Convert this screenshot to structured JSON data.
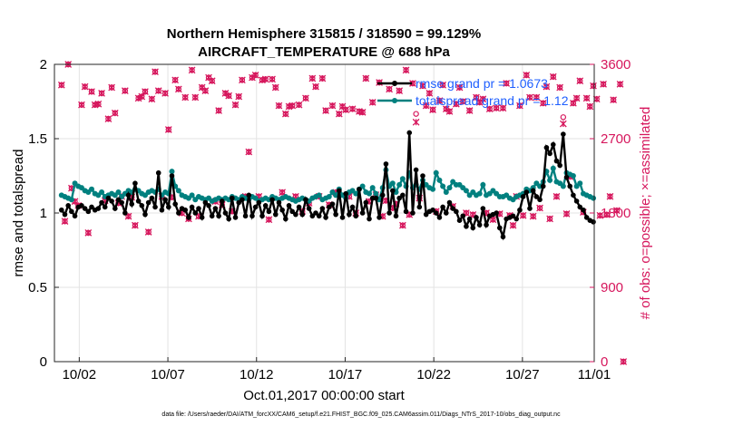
{
  "chart_data": {
    "type": "line",
    "title_line1": "Northern Hemisphere 315815 / 318590 = 99.129%",
    "title_line2": "AIRCRAFT_TEMPERATURE @ 688 hPa",
    "ylabel_left": "rmse and totalspread",
    "ylabel_right": "# of obs: o=possible; ×=assimilated",
    "xlabel": "Oct.01,2017 00:00:00 start",
    "footnote": "data file: /Users/raeder/DAI/ATM_forcXX/CAM6_setup/f.e21.FHIST_BGC.f09_025.CAM6assim.011/Diags_NTrS_2017-10/obs_diag_output.nc",
    "x_range": [
      0.6,
      31.05
    ],
    "ylim_left": [
      0,
      2
    ],
    "ylim_right": [
      0,
      3600
    ],
    "left_ticks": [
      "0",
      "0.5",
      "1",
      "1.5",
      "2"
    ],
    "right_ticks": [
      "0",
      "900",
      "1800",
      "2700",
      "3600"
    ],
    "x_ticks": [
      {
        "day": 2,
        "label": "10/02"
      },
      {
        "day": 7,
        "label": "10/07"
      },
      {
        "day": 12,
        "label": "10/12"
      },
      {
        "day": 17,
        "label": "10/17"
      },
      {
        "day": 22,
        "label": "10/22"
      },
      {
        "day": 27,
        "label": "10/27"
      },
      {
        "day": 32,
        "label": "11/01"
      }
    ],
    "legend": [
      {
        "label": "rmse grand pr = 1.0673",
        "color": "#000000"
      },
      {
        "label": "totalspread grand pr = 1.12",
        "color": "#00807f"
      }
    ],
    "series": [
      {
        "name": "rmse",
        "color": "#000000",
        "values": [
          1.02,
          0.99,
          1.05,
          1.01,
          0.98,
          1.04,
          1.05,
          1.03,
          1.01,
          1.04,
          1.02,
          1.03,
          1.07,
          1.04,
          1.1,
          1.08,
          1.03,
          1.09,
          1.07,
          1.0,
          1.12,
          1.06,
          1.2,
          1.08,
          1.05,
          0.99,
          1.07,
          1.1,
          1.04,
          1.27,
          1.02,
          1.09,
          1.04,
          1.25,
          1.06,
          1.0,
          1.03,
          1.02,
          0.97,
          1.04,
          1.0,
          1.03,
          0.97,
          1.07,
          1.05,
          0.98,
          1.03,
          0.98,
          1.08,
          1.0,
          0.96,
          1.1,
          0.97,
          1.07,
          1.09,
          0.98,
          1.12,
          0.98,
          1.04,
          1.07,
          0.98,
          1.05,
          1.01,
          1.09,
          0.99,
          1.07,
          1.02,
          0.96,
          1.05,
          1.01,
          0.99,
          1.04,
          0.99,
          1.09,
          1.03,
          0.98,
          1.0,
          0.98,
          1.03,
          0.97,
          1.04,
          1.06,
          0.99,
          1.15,
          0.97,
          1.13,
          0.99,
          1.04,
          0.98,
          1.16,
          1.0,
          1.07,
          0.96,
          1.1,
          1.1,
          0.97,
          1.12,
          1.33,
          1.0,
          1.15,
          0.98,
          1.1,
          1.12,
          1.01,
          1.54,
          1.0,
          1.29,
          1.04,
          1.25,
          0.99,
          1.01,
          1.02,
          1.0,
          0.97,
          1.04,
          1.0,
          1.07,
          1.03,
          1.01,
          0.95,
          0.98,
          0.91,
          0.96,
          0.9,
          0.97,
          0.92,
          1.03,
          0.92,
          0.98,
          0.99,
          1.0,
          0.9,
          0.84,
          0.96,
          0.97,
          0.98,
          0.96,
          1.02,
          1.11,
          1.14,
          1.03,
          1.15,
          1.11,
          1.09,
          1.18,
          1.44,
          1.4,
          1.46,
          1.35,
          1.32,
          1.53,
          1.24,
          1.18,
          1.12,
          1.08,
          1.04,
          1.02,
          0.97,
          0.95,
          0.94
        ]
      },
      {
        "name": "totalspread",
        "color": "#00807f",
        "values": [
          1.12,
          1.11,
          1.1,
          1.09,
          1.2,
          1.18,
          1.17,
          1.15,
          1.14,
          1.16,
          1.13,
          1.12,
          1.14,
          1.11,
          1.12,
          1.13,
          1.12,
          1.14,
          1.11,
          1.13,
          1.15,
          1.14,
          1.16,
          1.15,
          1.13,
          1.12,
          1.14,
          1.15,
          1.14,
          1.16,
          1.12,
          1.14,
          1.13,
          1.28,
          1.18,
          1.15,
          1.12,
          1.11,
          1.1,
          1.12,
          1.09,
          1.11,
          1.1,
          1.09,
          1.1,
          1.08,
          1.09,
          1.1,
          1.09,
          1.1,
          1.09,
          1.11,
          1.1,
          1.09,
          1.11,
          1.1,
          1.09,
          1.11,
          1.1,
          1.08,
          1.09,
          1.1,
          1.09,
          1.11,
          1.1,
          1.09,
          1.1,
          1.11,
          1.1,
          1.09,
          1.08,
          1.09,
          1.1,
          1.09,
          1.08,
          1.1,
          1.11,
          1.12,
          1.09,
          1.1,
          1.11,
          1.14,
          1.12,
          1.16,
          1.12,
          1.1,
          1.14,
          1.15,
          1.13,
          1.16,
          1.18,
          1.14,
          1.13,
          1.17,
          1.13,
          1.09,
          1.17,
          1.29,
          1.18,
          1.2,
          1.14,
          1.19,
          1.23,
          1.18,
          1.27,
          1.17,
          1.19,
          1.16,
          1.22,
          1.19,
          1.17,
          1.16,
          1.27,
          1.22,
          1.18,
          1.14,
          1.17,
          1.21,
          1.19,
          1.19,
          1.17,
          1.15,
          1.12,
          1.14,
          1.12,
          1.13,
          1.19,
          1.12,
          1.13,
          1.15,
          1.13,
          1.11,
          1.11,
          1.12,
          1.1,
          1.09,
          1.11,
          1.12,
          1.13,
          1.16,
          1.15,
          1.17,
          1.2,
          1.18,
          1.21,
          1.28,
          1.22,
          1.3,
          1.21,
          1.2,
          1.18,
          1.27,
          1.26,
          1.25,
          1.18,
          1.2,
          1.13,
          1.12,
          1.11,
          1.1
        ]
      },
      {
        "name": "obs_possible",
        "color": "#d6165c",
        "values": [
          3350,
          1700,
          3600,
          2100,
          1940,
          1890,
          3110,
          3330,
          1560,
          3270,
          3110,
          3120,
          3250,
          1950,
          2940,
          3320,
          3010,
          1920,
          2000,
          3280,
          1760,
          1990,
          1650,
          3190,
          3210,
          3270,
          1570,
          3180,
          3510,
          3280,
          2000,
          3250,
          2810,
          1990,
          3410,
          3300,
          1800,
          3200,
          1730,
          3530,
          3200,
          1760,
          3320,
          3280,
          3440,
          3400,
          1940,
          3040,
          1900,
          3250,
          3220,
          1820,
          3110,
          3210,
          3410,
          2000,
          2540,
          3440,
          3470,
          2000,
          3410,
          3420,
          1720,
          3420,
          3320,
          3100,
          2050,
          3000,
          3090,
          3100,
          2000,
          3110,
          1820,
          3190,
          1920,
          3430,
          3330,
          2000,
          3430,
          3040,
          1900,
          3100,
          2050,
          3000,
          3090,
          3050,
          2000,
          3060,
          1800,
          3030,
          3020,
          3430,
          1940,
          3140,
          2020,
          3380,
          1760,
          1950,
          3300,
          1860,
          1910,
          3280,
          1650,
          3530,
          1780,
          3370,
          3000,
          1980,
          3340,
          3100,
          3250,
          3050,
          1820,
          3160,
          3350,
          3060,
          3030,
          1880,
          3120,
          3320,
          3150,
          1800,
          3040,
          1780,
          3200,
          3140,
          3180,
          1800,
          3060,
          1720,
          3070,
          1790,
          3070,
          3370,
          1770,
          1650,
          2000,
          3100,
          1770,
          3470,
          3200,
          1760,
          3200,
          1860,
          3130,
          3330,
          1730,
          3450,
          2000,
          3320,
          2960,
          1790,
          2240,
          3130,
          3190,
          3400,
          1810,
          3190,
          3090,
          3340,
          3180,
          1770,
          3360,
          1780,
          2000,
          3170,
          1830,
          3360,
          0
        ]
      },
      {
        "name": "obs_assimilated",
        "color": "#d6165c",
        "values": [
          3350,
          1700,
          3600,
          2100,
          1940,
          1890,
          3110,
          3330,
          1560,
          3270,
          3110,
          3120,
          3250,
          1950,
          2940,
          3320,
          3010,
          1920,
          2000,
          3280,
          1760,
          1990,
          1650,
          3190,
          3210,
          3270,
          1570,
          3180,
          3510,
          3280,
          2000,
          3250,
          2810,
          1990,
          3410,
          3300,
          1800,
          3200,
          1730,
          3530,
          3200,
          1760,
          3320,
          3280,
          3440,
          3400,
          1940,
          3040,
          1900,
          3250,
          3220,
          1820,
          3110,
          3210,
          3410,
          2000,
          2540,
          3440,
          3470,
          2000,
          3410,
          3420,
          1720,
          3420,
          3320,
          3100,
          2050,
          3000,
          3090,
          3100,
          2000,
          3110,
          1820,
          3190,
          1920,
          3430,
          3330,
          2000,
          3430,
          3040,
          1900,
          3100,
          2050,
          3000,
          3090,
          3050,
          2000,
          3060,
          1800,
          3030,
          3020,
          3430,
          1940,
          3140,
          2020,
          3380,
          1760,
          1950,
          3300,
          1860,
          1910,
          3280,
          1650,
          3530,
          1780,
          3370,
          2900,
          1980,
          3340,
          3100,
          3250,
          3050,
          1820,
          3160,
          3350,
          3060,
          3030,
          1880,
          3120,
          3320,
          3150,
          1800,
          3040,
          1780,
          3200,
          3140,
          3180,
          1800,
          3060,
          1720,
          3070,
          1790,
          3070,
          3370,
          1770,
          1650,
          2000,
          3100,
          1770,
          3470,
          3200,
          1760,
          3200,
          1860,
          3130,
          3330,
          1730,
          3450,
          2000,
          3320,
          2880,
          1790,
          2240,
          3130,
          3190,
          3400,
          1810,
          3190,
          3090,
          3340,
          3180,
          1770,
          3360,
          1780,
          2000,
          3170,
          1830,
          3360,
          0
        ]
      }
    ]
  }
}
